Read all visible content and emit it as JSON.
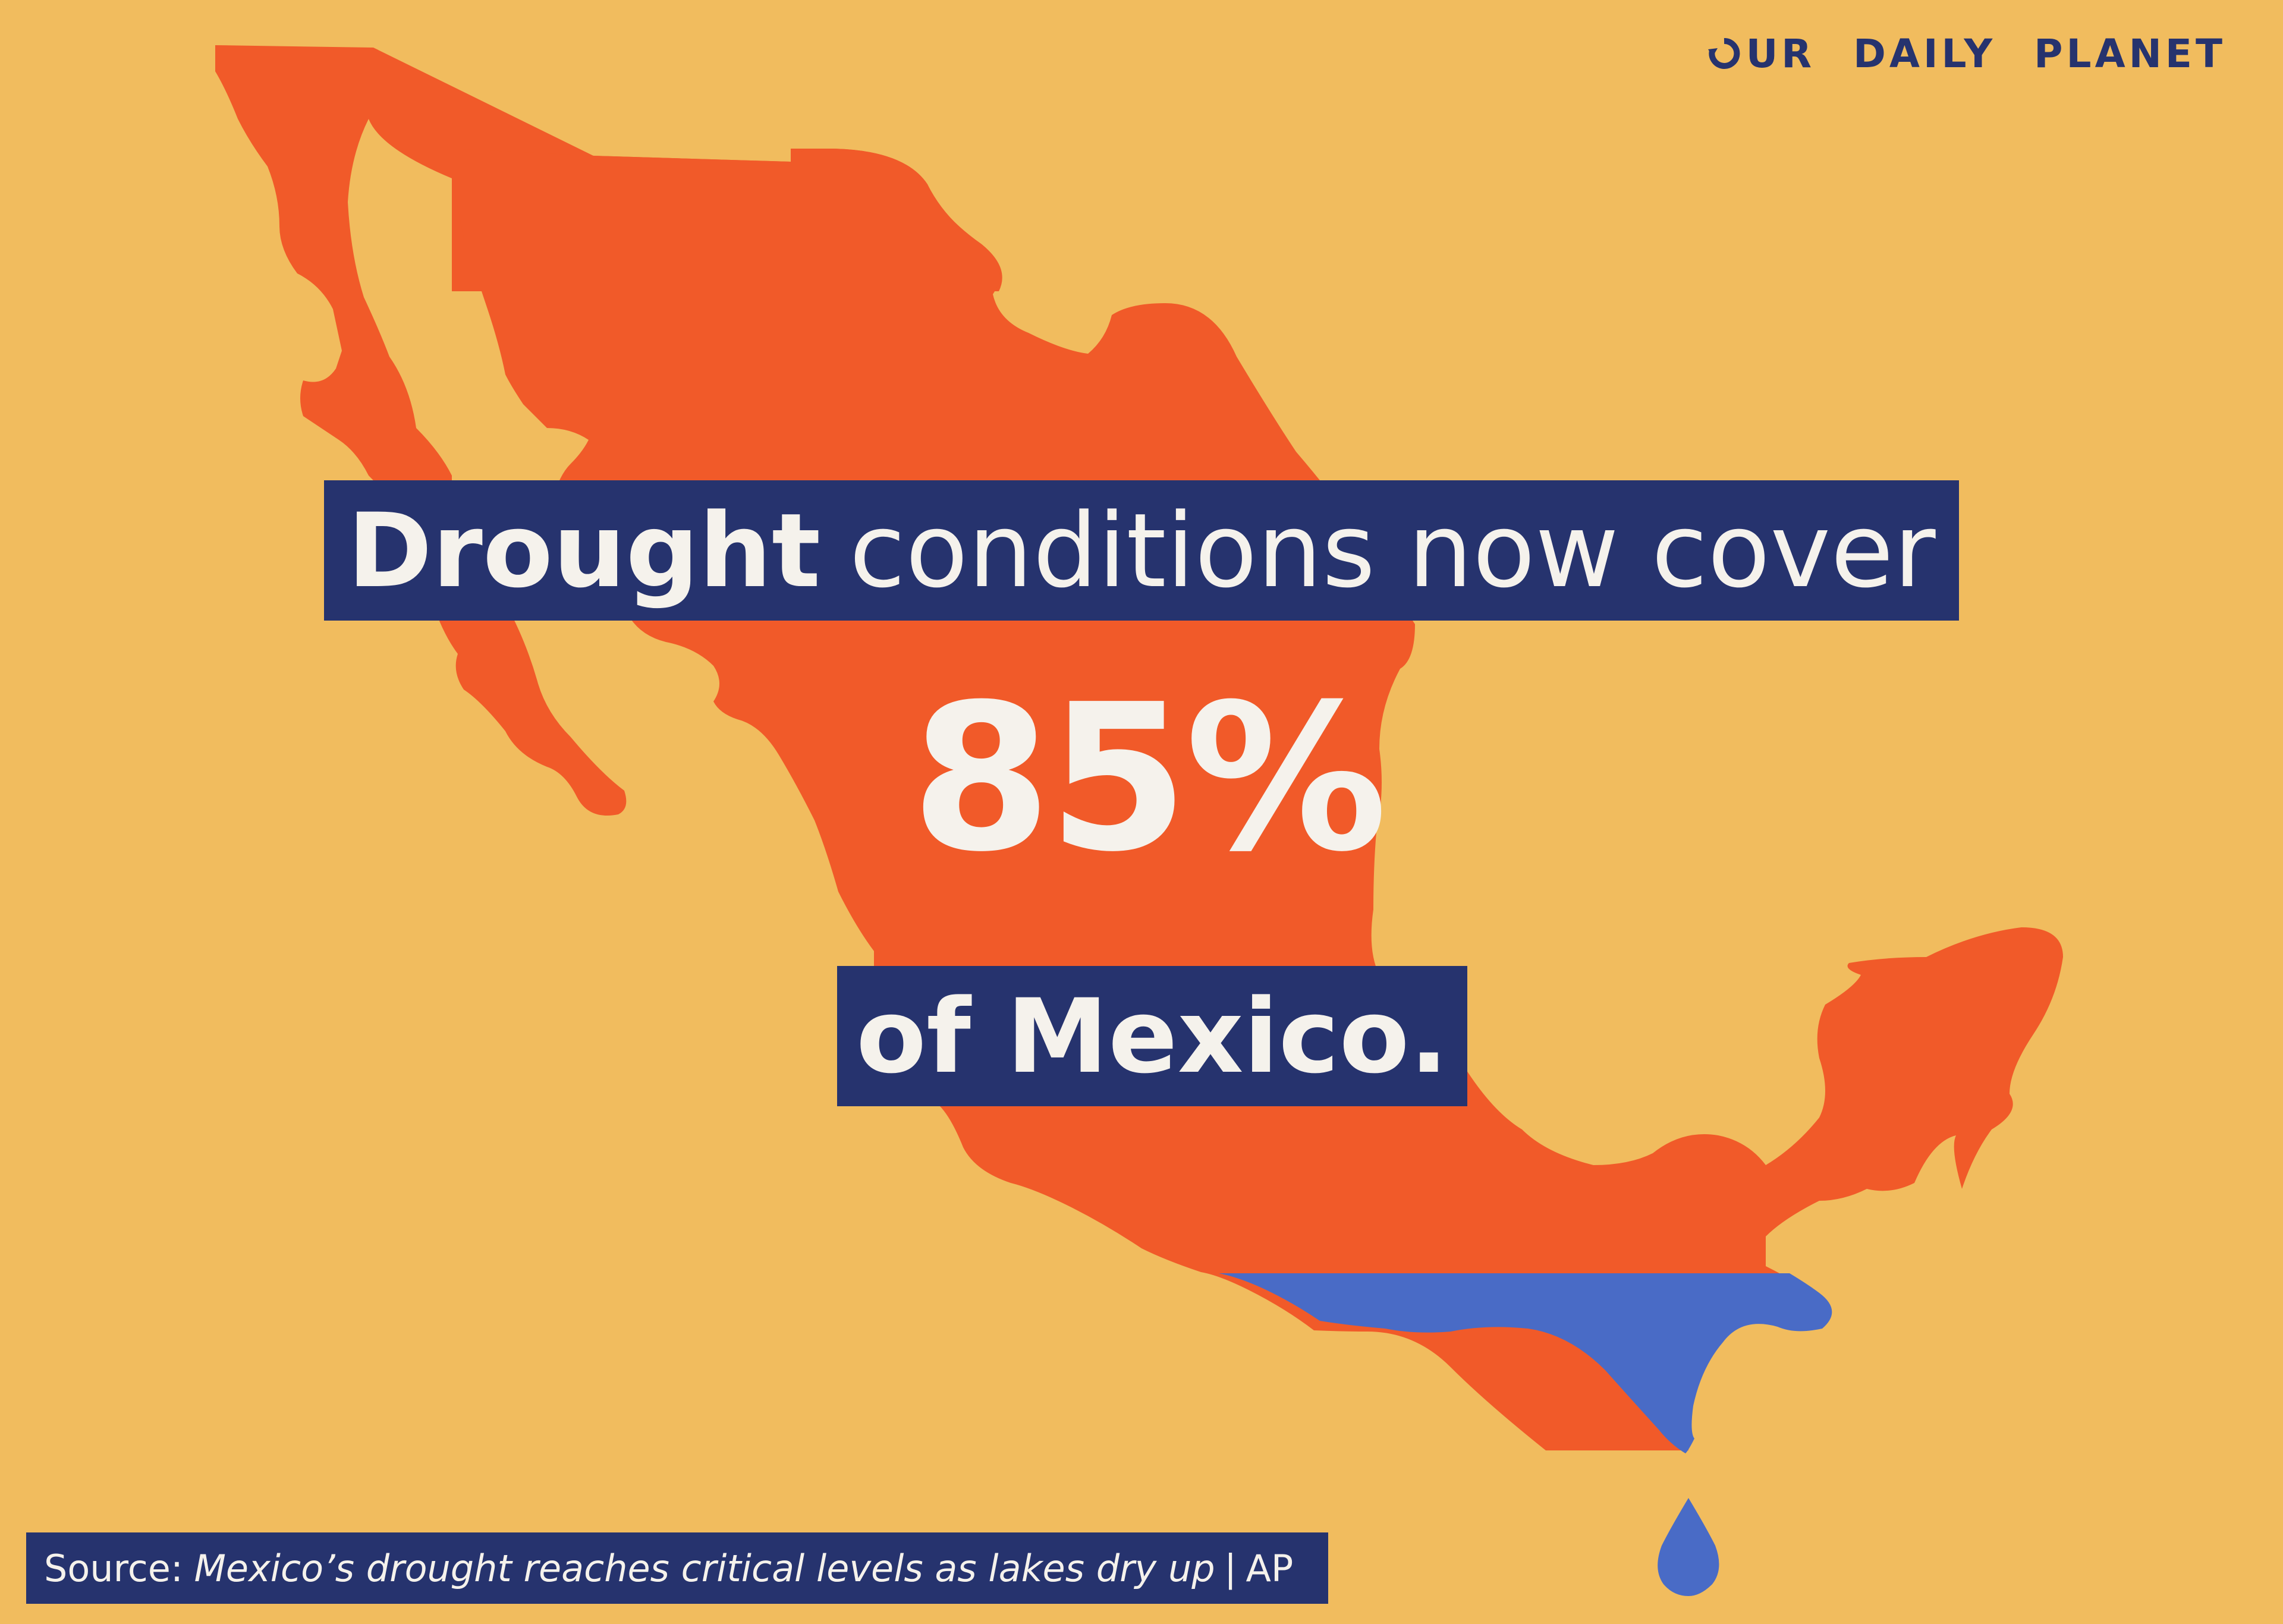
{
  "brand": {
    "logo_words": [
      "UR",
      "DAILY",
      "PLANET"
    ],
    "logo_ring_icon": "circular-arrow-o-icon",
    "color_navy": "#26336E"
  },
  "colors": {
    "background": "#F1BC5E",
    "map_dry": "#F15A29",
    "map_water": "#496BC6",
    "text_light": "#F5F2EC"
  },
  "headline": {
    "strong": "Drought",
    "rest": "conditions now cover"
  },
  "stat": {
    "value": "85%",
    "fraction": 0.85
  },
  "subline": {
    "text": "of Mexico."
  },
  "source": {
    "label": "Source:",
    "article": "Mexico’s drought reaches critical levels as lakes dry up",
    "separator": "|",
    "outlet": "AP"
  }
}
